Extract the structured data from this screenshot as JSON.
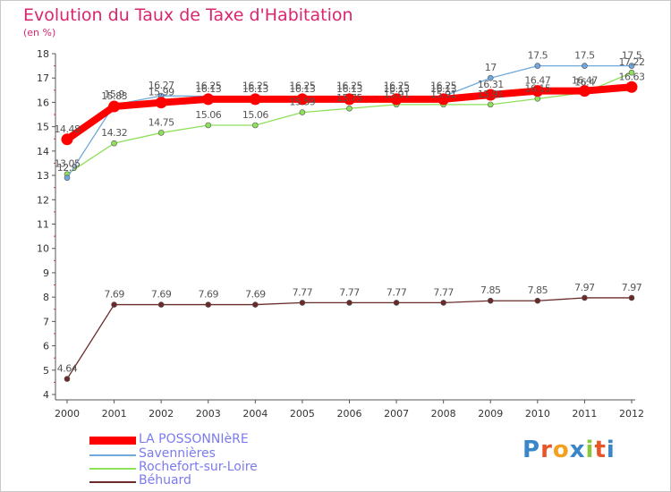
{
  "title": "Evolution du Taux de Taxe d'Habitation",
  "unit_label": "(en %)",
  "logo": {
    "text": "Proxiti",
    "letters": [
      {
        "ch": "P",
        "color": "#3a86c8"
      },
      {
        "ch": "r",
        "color": "#e6562a"
      },
      {
        "ch": "o",
        "color": "#f2a01e"
      },
      {
        "ch": "x",
        "color": "#3a86c8"
      },
      {
        "ch": "i",
        "color": "#8dc63f"
      },
      {
        "ch": "t",
        "color": "#e6562a"
      },
      {
        "ch": "i",
        "color": "#3a86c8"
      }
    ]
  },
  "chart_data": {
    "type": "line",
    "title": "Evolution du Taux de Taxe d'Habitation",
    "ylabel": "(en %)",
    "x": [
      "2000",
      "2001",
      "2002",
      "2003",
      "2004",
      "2005",
      "2006",
      "2007",
      "2008",
      "2009",
      "2010",
      "2011",
      "2012"
    ],
    "ylim": [
      4,
      18
    ],
    "yticks": [
      "4",
      "5",
      "6",
      "7",
      "8",
      "9",
      "10",
      "11",
      "12",
      "13",
      "14",
      "15",
      "16",
      "17",
      "18"
    ],
    "grid": false,
    "legend_position": "bottom-left",
    "series": [
      {
        "name": "LA POSSONNIèRE",
        "color": "#ff0000",
        "values": [
          14.48,
          15.83,
          15.99,
          16.13,
          16.13,
          16.13,
          16.13,
          16.13,
          16.13,
          16.31,
          16.47,
          16.47,
          16.63
        ],
        "labels": [
          "14.48",
          "15.83",
          "15.99",
          "16.13",
          "16.13",
          "16.13",
          "16.13",
          "16.13",
          "16.13",
          "16.31",
          "16.47",
          "16.47",
          "16.63"
        ]
      },
      {
        "name": "Savennières",
        "color": "#6fa8dc",
        "values": [
          12.9,
          15.9,
          16.27,
          16.25,
          16.25,
          16.25,
          16.25,
          16.25,
          16.25,
          17.0,
          17.5,
          17.5,
          17.5
        ],
        "labels": [
          "12.9",
          "15.9",
          "16.27",
          "16.25",
          "16.25",
          "16.25",
          "16.25",
          "16.25",
          "16.25",
          "17",
          "17.5",
          "17.5",
          "17.5"
        ]
      },
      {
        "name": "Rochefort-sur-Loire",
        "color": "#8fe05a",
        "values": [
          13.05,
          14.32,
          14.75,
          15.06,
          15.06,
          15.59,
          15.75,
          15.91,
          15.91,
          15.91,
          16.15,
          16.4,
          17.22
        ],
        "labels": [
          "13.05",
          "14.32",
          "14.75",
          "15.06",
          "15.06",
          "15.59",
          "15.75",
          "15.91",
          "15.91",
          "15.91",
          "16.15",
          "16.4",
          "17.22"
        ]
      },
      {
        "name": "Béhuard",
        "color": "#6b2a2a",
        "values": [
          4.64,
          7.69,
          7.69,
          7.69,
          7.69,
          7.77,
          7.77,
          7.77,
          7.77,
          7.85,
          7.85,
          7.97,
          7.97
        ],
        "labels": [
          "4.64",
          "7.69",
          "7.69",
          "7.69",
          "7.69",
          "7.77",
          "7.77",
          "7.77",
          "7.77",
          "7.85",
          "7.85",
          "7.97",
          "7.97"
        ]
      }
    ]
  }
}
